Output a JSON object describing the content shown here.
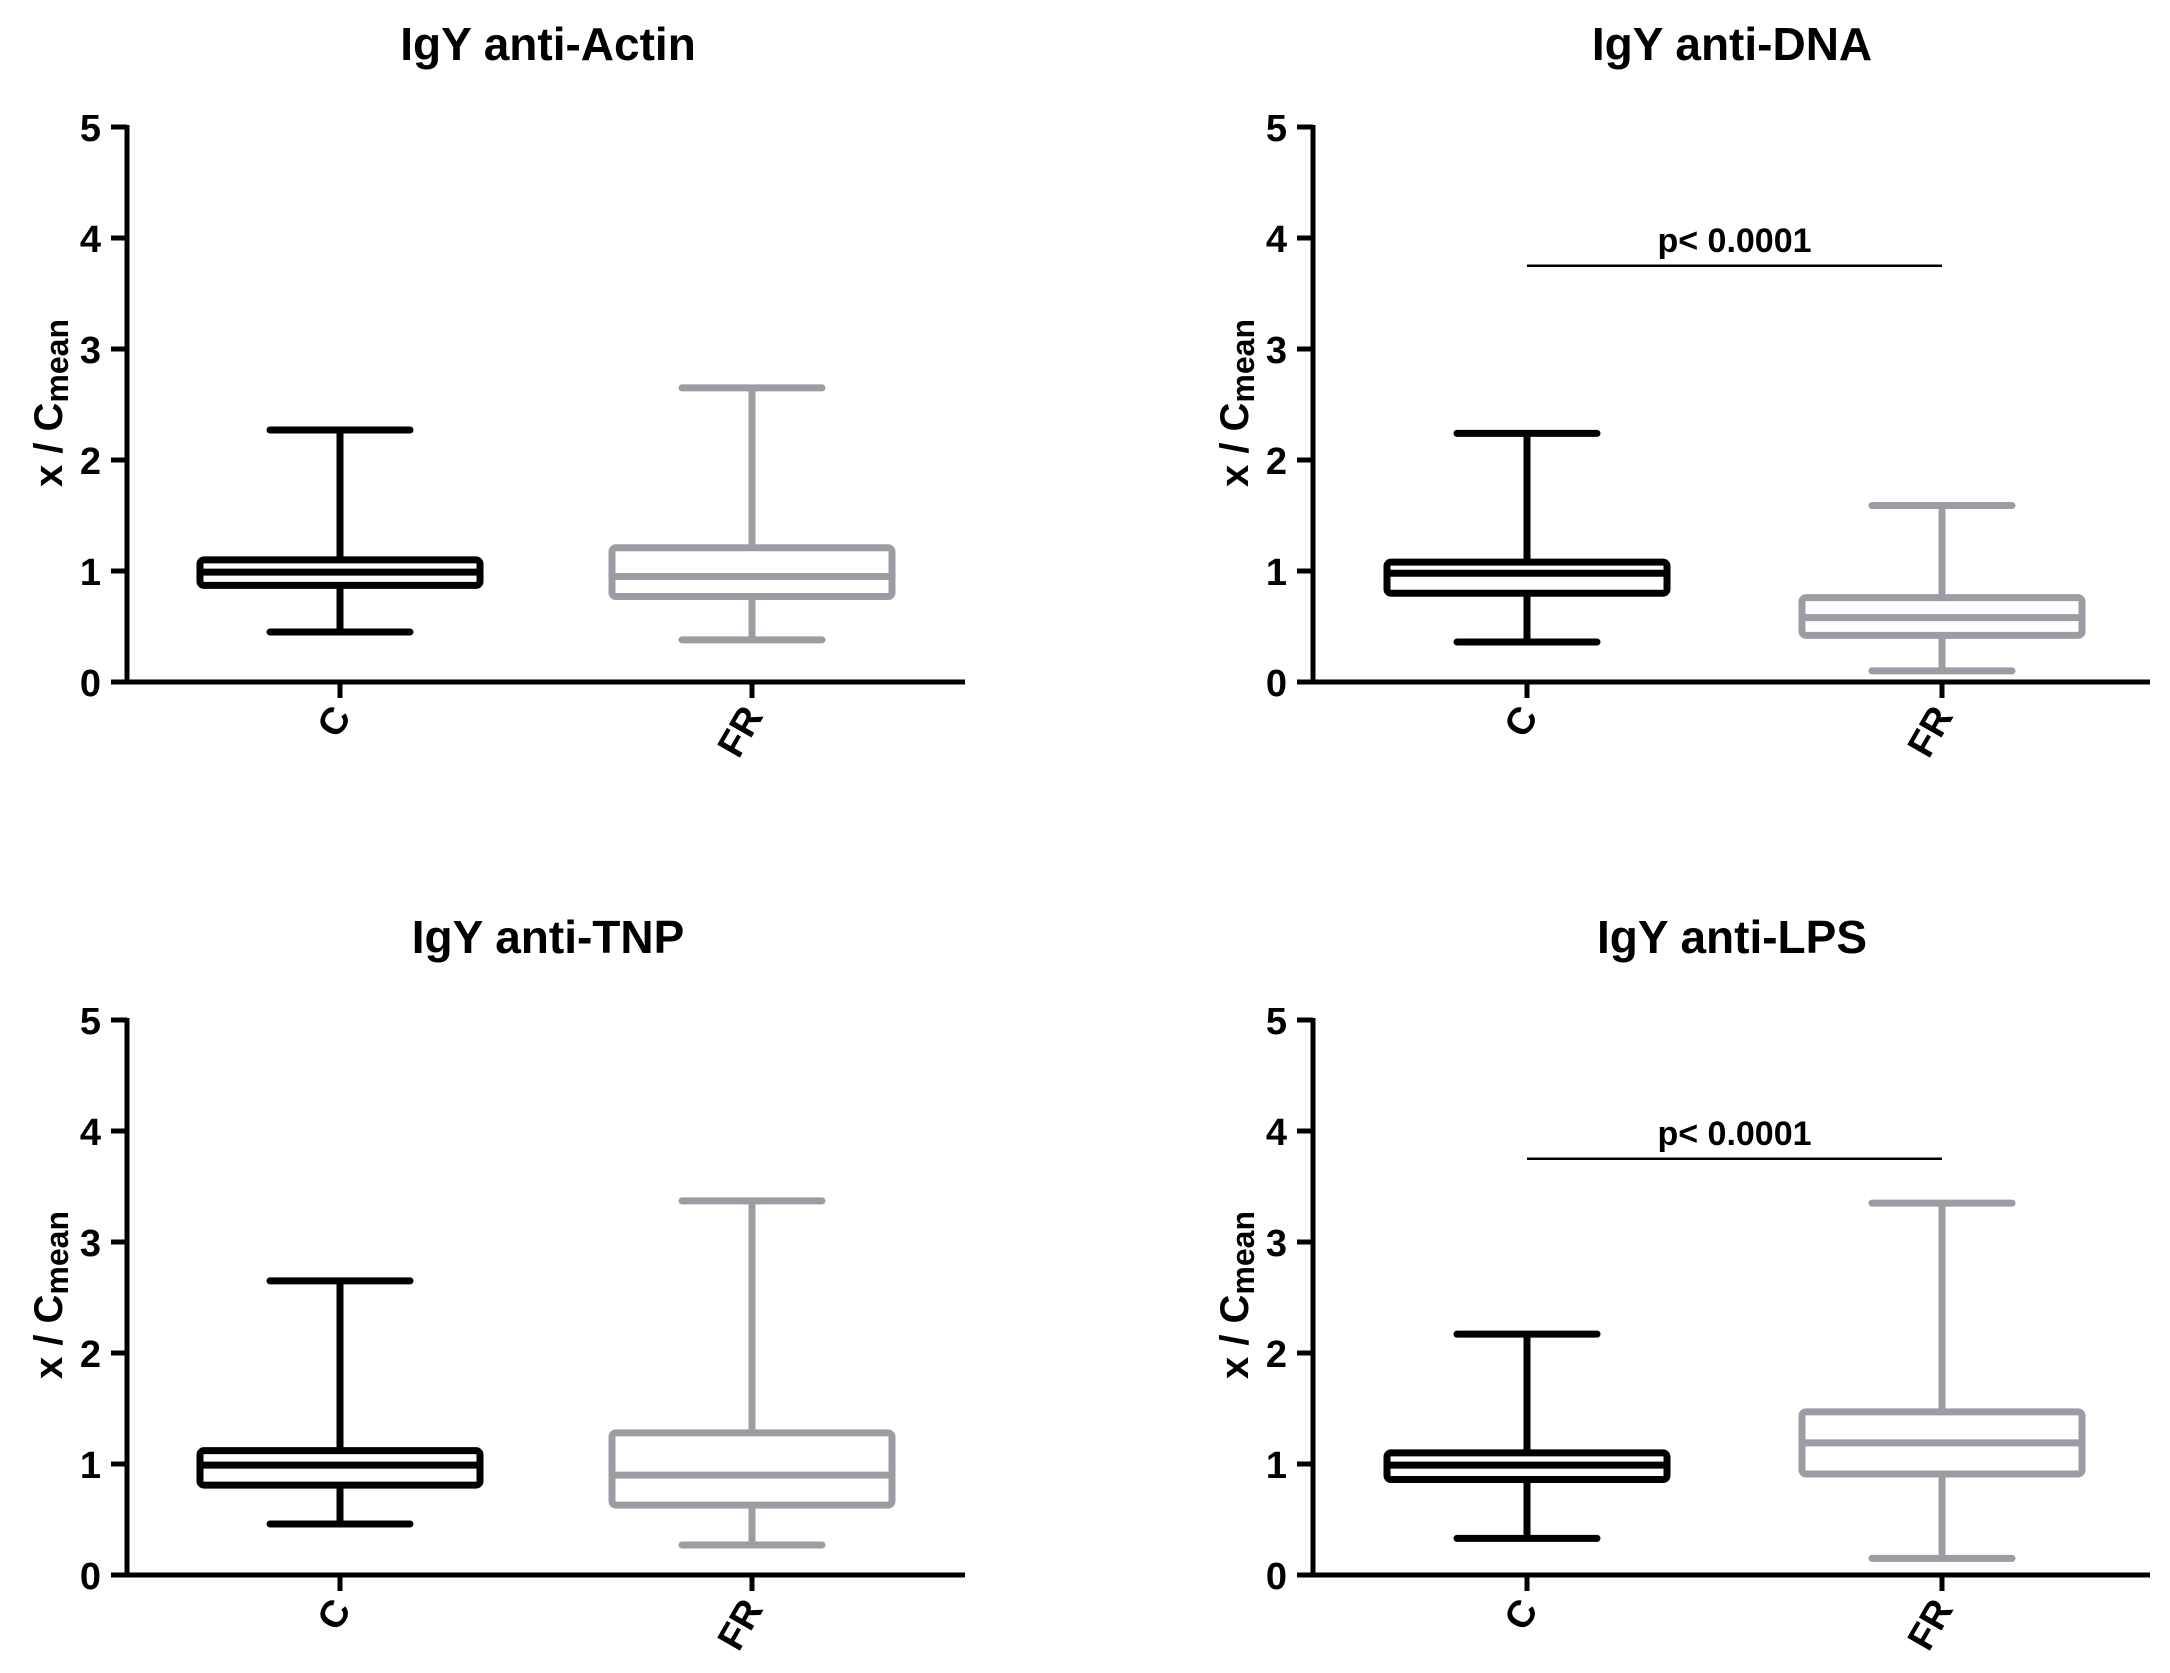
{
  "colors": {
    "control": "#000000",
    "fr": "#9c9ca4",
    "axis": "#000000"
  },
  "chart_data": [
    {
      "type": "box",
      "title": "IgY anti-Actin",
      "ylabel": "x / C",
      "ylabel_sub": "mean",
      "ylim": [
        0,
        5
      ],
      "yticks": [
        "0",
        "1",
        "2",
        "3",
        "4",
        "5"
      ],
      "categories": [
        "C",
        "FR"
      ],
      "boxes": [
        {
          "name": "C",
          "color": "control",
          "min": 0.45,
          "q1": 0.87,
          "median": 0.99,
          "q3": 1.1,
          "max": 2.27
        },
        {
          "name": "FR",
          "color": "fr",
          "min": 0.38,
          "q1": 0.77,
          "median": 0.95,
          "q3": 1.21,
          "max": 2.65
        }
      ],
      "annotation": null
    },
    {
      "type": "box",
      "title": "IgY anti-DNA",
      "ylabel": "x / C",
      "ylabel_sub": "mean",
      "ylim": [
        0,
        5
      ],
      "yticks": [
        "0",
        "1",
        "2",
        "3",
        "4",
        "5"
      ],
      "categories": [
        "C",
        "FR"
      ],
      "boxes": [
        {
          "name": "C",
          "color": "control",
          "min": 0.36,
          "q1": 0.8,
          "median": 0.98,
          "q3": 1.08,
          "max": 2.24
        },
        {
          "name": "FR",
          "color": "fr",
          "min": 0.1,
          "q1": 0.42,
          "median": 0.58,
          "q3": 0.76,
          "max": 1.59
        }
      ],
      "annotation": {
        "text": "p< 0.0001",
        "y": 3.75
      }
    },
    {
      "type": "box",
      "title": "IgY anti-TNP",
      "ylabel": "x / C",
      "ylabel_sub": "mean",
      "ylim": [
        0,
        5
      ],
      "yticks": [
        "0",
        "1",
        "2",
        "3",
        "4",
        "5"
      ],
      "categories": [
        "C",
        "FR"
      ],
      "boxes": [
        {
          "name": "C",
          "color": "control",
          "min": 0.46,
          "q1": 0.81,
          "median": 0.99,
          "q3": 1.12,
          "max": 2.65
        },
        {
          "name": "FR",
          "color": "fr",
          "min": 0.27,
          "q1": 0.63,
          "median": 0.9,
          "q3": 1.28,
          "max": 3.37
        }
      ],
      "annotation": null
    },
    {
      "type": "box",
      "title": "IgY anti-LPS",
      "ylabel": "x / C",
      "ylabel_sub": "mean",
      "ylim": [
        0,
        5
      ],
      "yticks": [
        "0",
        "1",
        "2",
        "3",
        "4",
        "5"
      ],
      "categories": [
        "C",
        "FR"
      ],
      "boxes": [
        {
          "name": "C",
          "color": "control",
          "min": 0.33,
          "q1": 0.86,
          "median": 0.99,
          "q3": 1.1,
          "max": 2.17
        },
        {
          "name": "FR",
          "color": "fr",
          "min": 0.15,
          "q1": 0.91,
          "median": 1.19,
          "q3": 1.47,
          "max": 3.35
        }
      ],
      "annotation": {
        "text": "p< 0.0001",
        "y": 3.75
      }
    }
  ]
}
